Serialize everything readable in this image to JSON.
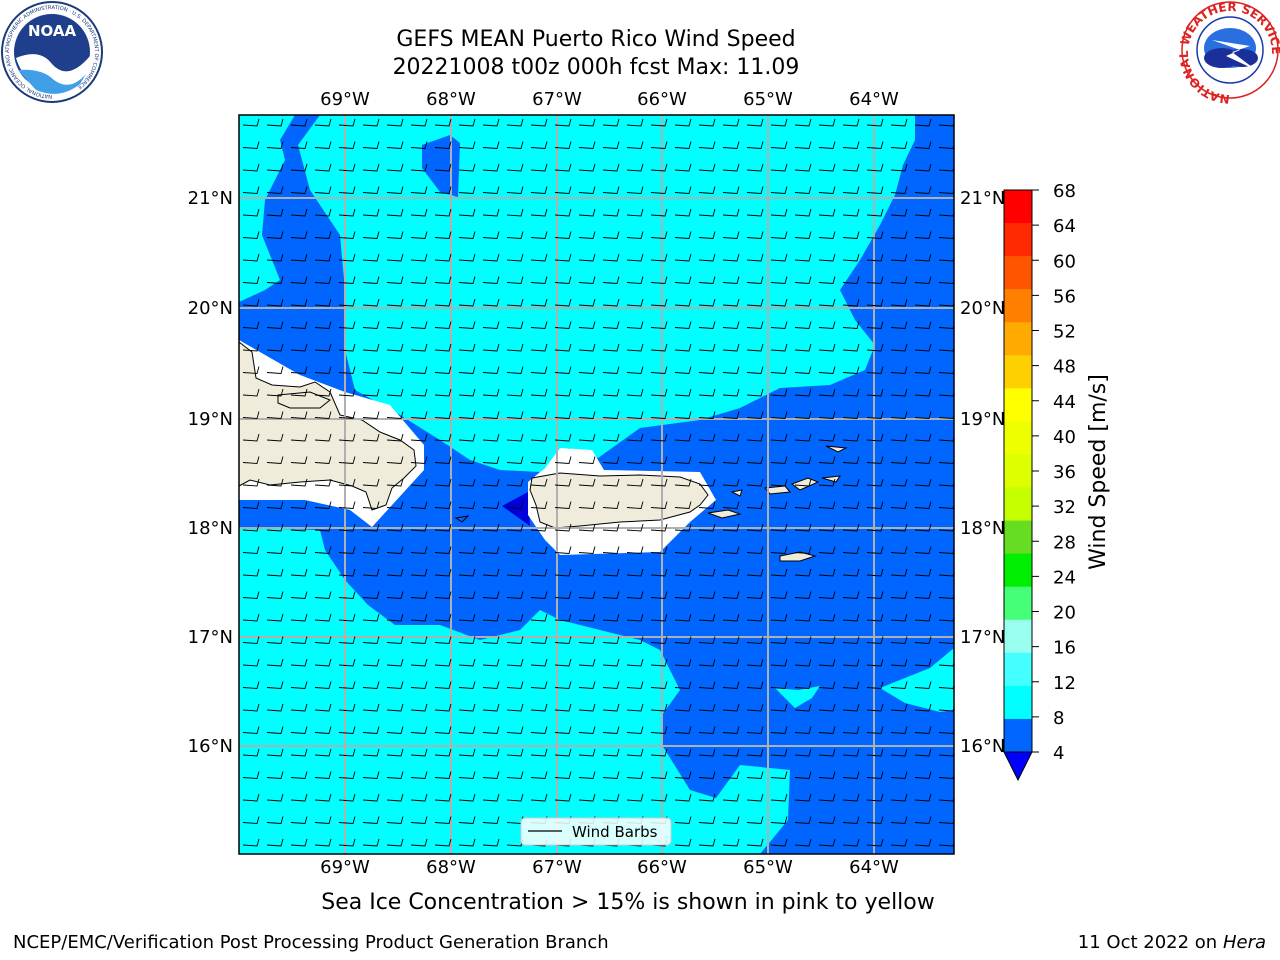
{
  "header": {
    "title_line1": "GEFS MEAN Puerto Rico Wind Speed",
    "title_line2": "20221008 t00z 000h fcst   Max: 11.09"
  },
  "logos": {
    "left": "NOAA",
    "left_ring_text": "NATIONAL OCEANIC AND ATMOSPHERIC ADMINISTRATION · U.S. DEPARTMENT OF COMMERCE",
    "right_ring_text": "NATIONAL WEATHER SERVICE"
  },
  "map": {
    "lon_labels": [
      "69°W",
      "68°W",
      "67°W",
      "66°W",
      "65°W",
      "64°W"
    ],
    "lat_labels": [
      "21°N",
      "20°N",
      "19°N",
      "18°N",
      "17°N",
      "16°N"
    ],
    "legend_label": "Wind Barbs",
    "colors": {
      "ocean_light": "#00ffff",
      "ocean_dark": "#0066ff",
      "deep": "#0000dd",
      "land": "#efecdc",
      "grid": "#b0b0b0"
    }
  },
  "colorbar": {
    "label": "Wind Speed [m/s]",
    "ticks": [
      "68",
      "64",
      "60",
      "56",
      "52",
      "48",
      "44",
      "40",
      "36",
      "32",
      "28",
      "24",
      "20",
      "16",
      "12",
      "8",
      "4"
    ],
    "colors": [
      "#ff0000",
      "#ff2a00",
      "#ff5500",
      "#ff8000",
      "#ffaa00",
      "#ffd000",
      "#ffff00",
      "#eeff00",
      "#ddff00",
      "#c6ff00",
      "#66dd22",
      "#00ee00",
      "#44ff77",
      "#99ffee",
      "#44ffff",
      "#00ffff",
      "#0066ff"
    ],
    "extend_color": "#0000ff"
  },
  "notes": {
    "sea_ice": "Sea Ice Concentration > 15% is shown in pink to yellow",
    "branch": "NCEP/EMC/Verification Post Processing Product Generation Branch",
    "date": "11 Oct 2022 on ",
    "machine": "Hera"
  }
}
